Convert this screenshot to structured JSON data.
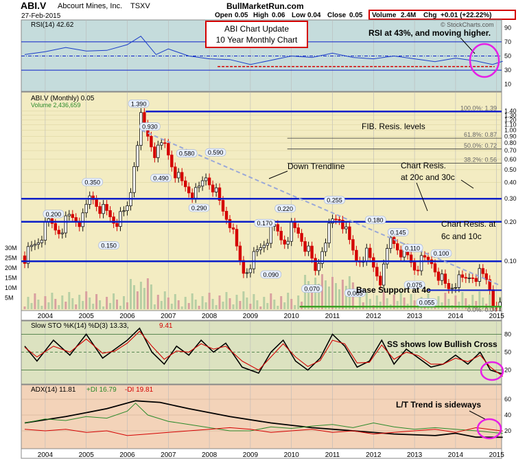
{
  "header": {
    "symbol": "ABI.V",
    "company": "Abcourt Mines, Inc.",
    "exchange": "TSXV",
    "date": "27-Feb-2015",
    "site": "BullMarketRun.com",
    "copyright": "© StockCharts.com",
    "quote": {
      "open_label": "Open",
      "open": "0.05",
      "high_label": "High",
      "high": "0.06",
      "low_label": "Low",
      "low": "0.04",
      "close_label": "Close",
      "close": "0.05",
      "volume_label": "Volume",
      "volume": "2.4M",
      "chg_label": "Chg",
      "chg": "+0.01 (+22.22%)"
    }
  },
  "colors": {
    "rsi_bg": "#c5dcdc",
    "price_bg": "#f3ecc2",
    "sto_bg": "#dce2c0",
    "adx_bg": "#f3d3b9",
    "hline": "#0a1ec8",
    "up": "#111111",
    "down": "#d40000",
    "annotation_box": "#d40000",
    "circle": "#e61ee6",
    "support": "#3da022"
  },
  "chart_data": [
    {
      "type": "line",
      "panel": "rsi",
      "legend": "RSI(14) 42.62",
      "y_ticks": [
        "90",
        "70",
        "50",
        "30",
        "10"
      ],
      "ylim": [
        0,
        100
      ],
      "levels": [
        70,
        50,
        30
      ],
      "support_level": 35,
      "x": [
        2003.5,
        2004.0,
        2004.5,
        2005.0,
        2005.5,
        2006.0,
        2006.33,
        2006.7,
        2007.0,
        2007.5,
        2008.0,
        2008.5,
        2009.0,
        2009.5,
        2010.0,
        2010.5,
        2011.0,
        2011.5,
        2012.0,
        2012.5,
        2013.0,
        2013.5,
        2014.0,
        2014.5,
        2014.9,
        2015.15
      ],
      "values": [
        52,
        56,
        62,
        57,
        58,
        66,
        78,
        52,
        60,
        50,
        46,
        45,
        38,
        44,
        50,
        48,
        54,
        48,
        46,
        50,
        46,
        42,
        47,
        43,
        38,
        42.62
      ],
      "annotation": "RSI at 43%, and moving higher."
    },
    {
      "type": "candlestick",
      "panel": "price",
      "legend": "ABI.V (Monthly) 0.05",
      "volume_legend": "Volume 2,436,659",
      "scale": "log",
      "y_ticks": [
        "1.40",
        "1.30",
        "1.20",
        "1.10",
        "1.00",
        "0.90",
        "0.80",
        "0.70",
        "0.60",
        "0.50",
        "0.40",
        "0.30",
        "0.20",
        "0.10"
      ],
      "x_ticks": [
        "2004",
        "2005",
        "2006",
        "2007",
        "2008",
        "2009",
        "2010",
        "2011",
        "2012",
        "2013",
        "2014",
        "2015"
      ],
      "volume_ticks": [
        "30M",
        "25M",
        "20M",
        "15M",
        "10M",
        "5M"
      ],
      "close_path": {
        "x": [
          2003.5,
          2003.8,
          2004.1,
          2004.3,
          2004.6,
          2004.9,
          2005.1,
          2005.4,
          2005.7,
          2005.9,
          2006.05,
          2006.2,
          2006.33,
          2006.5,
          2006.7,
          2006.9,
          2007.1,
          2007.3,
          2007.5,
          2007.7,
          2007.9,
          2008.1,
          2008.3,
          2008.5,
          2008.7,
          2008.85,
          2009.0,
          2009.2,
          2009.4,
          2009.6,
          2009.8,
          2010.0,
          2010.2,
          2010.4,
          2010.6,
          2010.8,
          2011.0,
          2011.2,
          2011.4,
          2011.6,
          2011.8,
          2012.0,
          2012.2,
          2012.4,
          2012.6,
          2012.8,
          2013.0,
          2013.2,
          2013.4,
          2013.6,
          2013.8,
          2014.0,
          2014.2,
          2014.4,
          2014.6,
          2014.8,
          2015.0,
          2015.15
        ],
        "values": [
          0.11,
          0.14,
          0.2,
          0.17,
          0.22,
          0.2,
          0.32,
          0.25,
          0.2,
          0.22,
          0.28,
          0.7,
          1.25,
          0.9,
          0.65,
          0.8,
          0.55,
          0.4,
          0.35,
          0.32,
          0.45,
          0.38,
          0.25,
          0.2,
          0.11,
          0.08,
          0.1,
          0.12,
          0.15,
          0.18,
          0.14,
          0.18,
          0.16,
          0.12,
          0.08,
          0.15,
          0.2,
          0.22,
          0.14,
          0.1,
          0.12,
          0.09,
          0.07,
          0.15,
          0.13,
          0.11,
          0.09,
          0.1,
          0.1,
          0.08,
          0.06,
          0.07,
          0.07,
          0.08,
          0.08,
          0.07,
          0.04,
          0.05
        ]
      },
      "peak_labels": [
        {
          "x": 2004.2,
          "value": 0.2,
          "text": "0.200"
        },
        {
          "x": 2005.15,
          "value": 0.35,
          "text": "0.350"
        },
        {
          "x": 2005.55,
          "value": 0.15,
          "text": "0.150"
        },
        {
          "x": 2006.28,
          "value": 1.39,
          "text": "1.390"
        },
        {
          "x": 2006.55,
          "value": 0.93,
          "text": "0.930"
        },
        {
          "x": 2006.82,
          "value": 0.49,
          "text": "0.490"
        },
        {
          "x": 2007.45,
          "value": 0.58,
          "text": "0.580"
        },
        {
          "x": 2007.75,
          "value": 0.29,
          "text": "0.290"
        },
        {
          "x": 2008.15,
          "value": 0.59,
          "text": "0.590"
        },
        {
          "x": 2009.35,
          "value": 0.17,
          "text": "0.170"
        },
        {
          "x": 2009.5,
          "value": 0.09,
          "text": "0.090"
        },
        {
          "x": 2009.85,
          "value": 0.22,
          "text": "0.220"
        },
        {
          "x": 2010.5,
          "value": 0.07,
          "text": "0.070"
        },
        {
          "x": 2011.05,
          "value": 0.255,
          "text": "0.255"
        },
        {
          "x": 2011.55,
          "value": 0.065,
          "text": "0.065"
        },
        {
          "x": 2012.05,
          "value": 0.18,
          "text": "0.180"
        },
        {
          "x": 2012.6,
          "value": 0.145,
          "text": "0.145"
        },
        {
          "x": 2012.95,
          "value": 0.11,
          "text": "0.110"
        },
        {
          "x": 2013.0,
          "value": 0.075,
          "text": "0.075"
        },
        {
          "x": 2013.65,
          "value": 0.1,
          "text": "0.100"
        },
        {
          "x": 2013.3,
          "value": 0.055,
          "text": "0.055"
        }
      ],
      "resistance_lines": [
        1.39,
        0.3,
        0.2,
        0.1
      ],
      "support_line": 0.045,
      "fib_levels": [
        {
          "label": "100.0%: 1.39",
          "value": 1.39
        },
        {
          "label": "61.8%: 0.87",
          "value": 0.87
        },
        {
          "label": "50.0%: 0.72",
          "value": 0.72
        },
        {
          "label": "38.2%: 0.56",
          "value": 0.56
        },
        {
          "label": "0.0%: 0.04",
          "value": 0.04
        }
      ],
      "trendline": {
        "from": [
          2006.35,
          1.0
        ],
        "to": [
          2015.1,
          0.065
        ]
      },
      "annotations": {
        "update_box_line1": "ABI Chart Update",
        "update_box_line2": "10 Year Monthly Chart",
        "fib": "FIB. Resis. levels",
        "trend": "Down Trendline",
        "resis1_line1": "Chart Resis.",
        "resis1_line2": "at 20c and 30c",
        "resis2_line1": "Chart Resis. at",
        "resis2_line2": "6c and 10c",
        "support": "Base Support at 4c"
      }
    },
    {
      "type": "line",
      "panel": "slow_stochastic",
      "legend": "Slow STO %K(14) %D(3) 13.33, 9.41",
      "legend_k": "Slow STO %K(14) %D(3) 13.33,",
      "legend_d": "9.41",
      "y_ticks": [
        "80",
        "50",
        "20"
      ],
      "ylim": [
        0,
        100
      ],
      "series": [
        {
          "name": "%K",
          "x": [
            2003.5,
            2003.8,
            2004.2,
            2004.6,
            2005.0,
            2005.4,
            2005.7,
            2006.0,
            2006.3,
            2006.6,
            2006.9,
            2007.2,
            2007.5,
            2007.8,
            2008.1,
            2008.4,
            2008.8,
            2009.2,
            2009.5,
            2009.8,
            2010.1,
            2010.4,
            2010.7,
            2011.0,
            2011.3,
            2011.6,
            2011.9,
            2012.2,
            2012.5,
            2012.8,
            2013.1,
            2013.4,
            2013.7,
            2014.0,
            2014.3,
            2014.6,
            2014.85,
            2015.15
          ],
          "values": [
            60,
            35,
            70,
            45,
            80,
            40,
            55,
            70,
            90,
            50,
            30,
            60,
            45,
            70,
            50,
            65,
            25,
            15,
            50,
            70,
            35,
            20,
            40,
            80,
            60,
            25,
            35,
            70,
            30,
            55,
            40,
            25,
            30,
            45,
            30,
            50,
            20,
            13.33
          ]
        },
        {
          "name": "%D",
          "x": [
            2003.5,
            2003.8,
            2004.2,
            2004.6,
            2005.0,
            2005.4,
            2005.7,
            2006.0,
            2006.3,
            2006.6,
            2006.9,
            2007.2,
            2007.5,
            2007.8,
            2008.1,
            2008.4,
            2008.8,
            2009.2,
            2009.5,
            2009.8,
            2010.1,
            2010.4,
            2010.7,
            2011.0,
            2011.3,
            2011.6,
            2011.9,
            2012.2,
            2012.5,
            2012.8,
            2013.1,
            2013.4,
            2013.7,
            2014.0,
            2014.3,
            2014.6,
            2014.85,
            2015.15
          ],
          "values": [
            58,
            42,
            60,
            50,
            72,
            48,
            52,
            65,
            85,
            60,
            38,
            52,
            50,
            64,
            55,
            60,
            35,
            20,
            42,
            64,
            42,
            26,
            36,
            70,
            64,
            32,
            33,
            62,
            38,
            50,
            44,
            30,
            30,
            40,
            34,
            45,
            25,
            9.41
          ]
        }
      ],
      "annotation": "SS shows low Bullish Cross"
    },
    {
      "type": "line",
      "panel": "adx",
      "legend_adx": "ADX(14) 11.81",
      "legend_pdi": "+DI 16.79",
      "legend_ndi": "-DI 19.81",
      "y_ticks": [
        "60",
        "40",
        "20"
      ],
      "ylim": [
        0,
        75
      ],
      "series": [
        {
          "name": "ADX",
          "x": [
            2003.5,
            2004.5,
            2005.5,
            2006.2,
            2006.8,
            2007.5,
            2008.5,
            2009.5,
            2010.5,
            2011.5,
            2012.5,
            2013.5,
            2014.0,
            2014.5,
            2015.15
          ],
          "values": [
            30,
            38,
            48,
            58,
            56,
            48,
            38,
            30,
            24,
            20,
            16,
            14,
            17,
            12,
            11.81
          ]
        },
        {
          "name": "+DI",
          "x": [
            2003.5,
            2004.0,
            2004.5,
            2005.0,
            2005.5,
            2006.0,
            2006.2,
            2006.5,
            2007.0,
            2007.5,
            2008.0,
            2008.5,
            2009.0,
            2009.5,
            2010.0,
            2010.5,
            2011.0,
            2011.5,
            2012.0,
            2012.5,
            2013.0,
            2013.5,
            2014.0,
            2014.5,
            2015.15
          ],
          "values": [
            30,
            35,
            33,
            38,
            36,
            45,
            55,
            40,
            32,
            28,
            24,
            20,
            20,
            25,
            23,
            26,
            28,
            24,
            30,
            25,
            22,
            24,
            22,
            20,
            16.79
          ]
        },
        {
          "name": "-DI",
          "x": [
            2003.5,
            2004.0,
            2004.5,
            2005.0,
            2005.5,
            2006.0,
            2006.5,
            2007.0,
            2007.5,
            2008.0,
            2008.5,
            2009.0,
            2009.5,
            2010.0,
            2010.5,
            2011.0,
            2011.5,
            2012.0,
            2012.5,
            2013.0,
            2013.5,
            2014.0,
            2014.5,
            2015.15
          ],
          "values": [
            22,
            20,
            22,
            18,
            20,
            14,
            16,
            18,
            20,
            22,
            24,
            22,
            18,
            20,
            22,
            18,
            20,
            16,
            18,
            20,
            22,
            18,
            24,
            19.81
          ]
        }
      ],
      "annotation": "L/T Trend is sideways"
    }
  ]
}
